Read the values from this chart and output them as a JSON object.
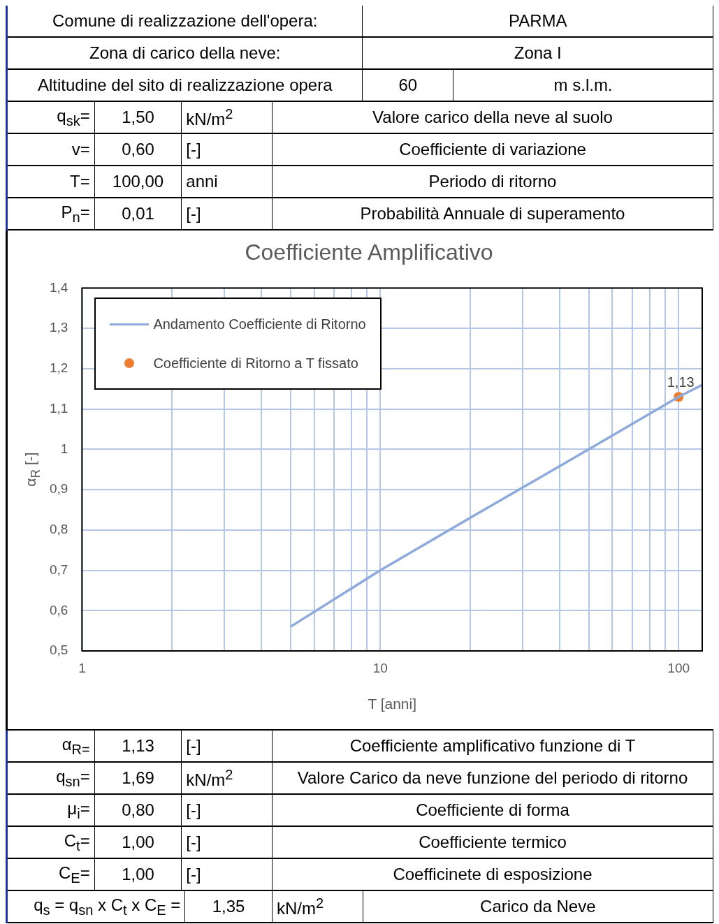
{
  "chart_data": [
    {
      "type": "other",
      "annotations": [
        "Comune di realizzazione dell'opera:",
        "PARMA",
        "Zona di carico della neve:",
        "Zona I",
        "Altitudine del sito di realizzazione opera",
        "60",
        "m s.l.m.",
        "q$_{sk}$=",
        "1,50",
        "kN/m$^{2}$",
        "Valore carico della neve al suolo",
        "v=",
        "0,60",
        "[-]",
        "Coefficiente di variazione",
        "T=",
        "100,00",
        "anni",
        "Periodo di ritorno",
        "P$_{n}$=",
        "0,01",
        "[-]",
        "Probabilità Annuale di superamento"
      ]
    },
    {
      "type": "line",
      "title": "Coefficiente Amplificativo",
      "xlabel": "T [anni]",
      "ylabel": "α$_{R}$ [-]",
      "log": "x",
      "grid": true,
      "legend": "top left",
      "xlim": [
        1,
        120
      ],
      "xticks": [
        1,
        {
          "value": 2,
          "label": null
        },
        {
          "value": 3,
          "label": null
        },
        {
          "value": 4,
          "label": null
        },
        {
          "value": 5,
          "label": null
        },
        {
          "value": 6,
          "label": null
        },
        {
          "value": 7,
          "label": null
        },
        {
          "value": 8,
          "label": null
        },
        {
          "value": 9,
          "label": null
        },
        10,
        {
          "value": 20,
          "label": null
        },
        {
          "value": 30,
          "label": null
        },
        {
          "value": 40,
          "label": null
        },
        {
          "value": 50,
          "label": null
        },
        {
          "value": 60,
          "label": null
        },
        {
          "value": 70,
          "label": null
        },
        {
          "value": 80,
          "label": null
        },
        {
          "value": 90,
          "label": null
        },
        100
      ],
      "ylim": [
        0.5,
        1.4
      ],
      "yticks": [
        {
          "value": 0.5,
          "label": "0,5"
        },
        {
          "value": 0.6,
          "label": "0,6"
        },
        {
          "value": 0.7,
          "label": "0,7"
        },
        {
          "value": 0.8,
          "label": "0,8"
        },
        {
          "value": 0.9,
          "label": "0,9"
        },
        1,
        {
          "value": 1.1,
          "label": "1,1"
        },
        {
          "value": 1.2,
          "label": "1,2"
        },
        {
          "value": 1.3,
          "label": "1,3"
        },
        {
          "value": 1.4,
          "label": "1,4"
        }
      ],
      "series": [
        {
          "type": "line",
          "name": "Andamento Coefficiente di Ritorno",
          "color": "#8eaadb",
          "marker": "none",
          "x": [
            5,
            10,
            20,
            50,
            100,
            120
          ],
          "values": [
            0.56,
            0.7,
            0.83,
            1.0,
            1.13,
            1.16
          ]
        },
        {
          "type": "scatter",
          "name": "Coefficiente di Ritorno a T fissato",
          "color": "#ed7d31",
          "marker": "circle",
          "x": [
            100
          ],
          "values": [
            1.13
          ],
          "value_labels": [
            "1,13"
          ]
        }
      ]
    },
    {
      "type": "other",
      "annotations": [
        "α$_{R=}$",
        "1,13",
        "[-]",
        "Coefficiente amplificativo funzione di T",
        "q$_{sn}$=",
        "1,69",
        "kN/m$^{2}$",
        "Valore Carico da neve funzione del periodo di ritorno",
        "μ$_{i}$=",
        "0,80",
        "[-]",
        "Coefficiente di forma",
        "C$_{t}$=",
        "1,00",
        "[-]",
        "Coefficiente termico",
        "C$_{E}$=",
        "1,00",
        "[-]",
        "Coefficinete di esposizione",
        "q$_{s}$ = q$_{sn}$ x C$_{t}$ x C$_{E}$ =",
        "1,35",
        "kN/m$^{2}$",
        "Carico da Neve"
      ]
    }
  ]
}
